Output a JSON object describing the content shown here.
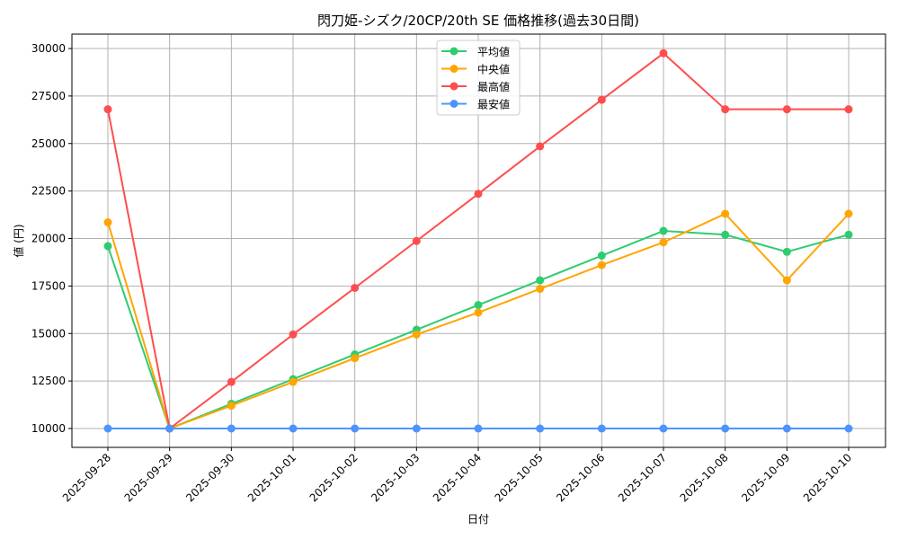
{
  "chart_data": {
    "type": "line",
    "title": "閃刀姫-シズク/20CP/20th SE 価格推移(過去30日間)",
    "xlabel": "日付",
    "ylabel": "値 (円)",
    "ylim": [
      9000,
      30750
    ],
    "yticks": [
      10000,
      12500,
      15000,
      17500,
      20000,
      22500,
      25000,
      27500,
      30000
    ],
    "grid": true,
    "legend_position": "top-center",
    "categories": [
      "2025-09-28",
      "2025-09-29",
      "2025-09-30",
      "2025-10-01",
      "2025-10-02",
      "2025-10-03",
      "2025-10-04",
      "2025-10-05",
      "2025-10-06",
      "2025-10-07",
      "2025-10-08",
      "2025-10-09",
      "2025-10-10"
    ],
    "series": [
      {
        "name": "平均値",
        "color": "#2ecc71",
        "values": [
          19600,
          10000,
          11300,
          12600,
          13900,
          15200,
          16500,
          17800,
          19100,
          20400,
          20200,
          19300,
          20200
        ]
      },
      {
        "name": "中央値",
        "color": "#ffa500",
        "values": [
          20850,
          10000,
          11200,
          12450,
          13700,
          14950,
          16100,
          17350,
          18600,
          19800,
          21300,
          17800,
          21300
        ]
      },
      {
        "name": "最高値",
        "color": "#ff4d4d",
        "values": [
          26800,
          10000,
          12450,
          14950,
          17400,
          19870,
          22350,
          24850,
          27300,
          29750,
          26800,
          26800,
          26800
        ]
      },
      {
        "name": "最安値",
        "color": "#4d94ff",
        "values": [
          10000,
          10000,
          10000,
          10000,
          10000,
          10000,
          10000,
          10000,
          10000,
          10000,
          10000,
          10000,
          10000
        ]
      }
    ]
  }
}
